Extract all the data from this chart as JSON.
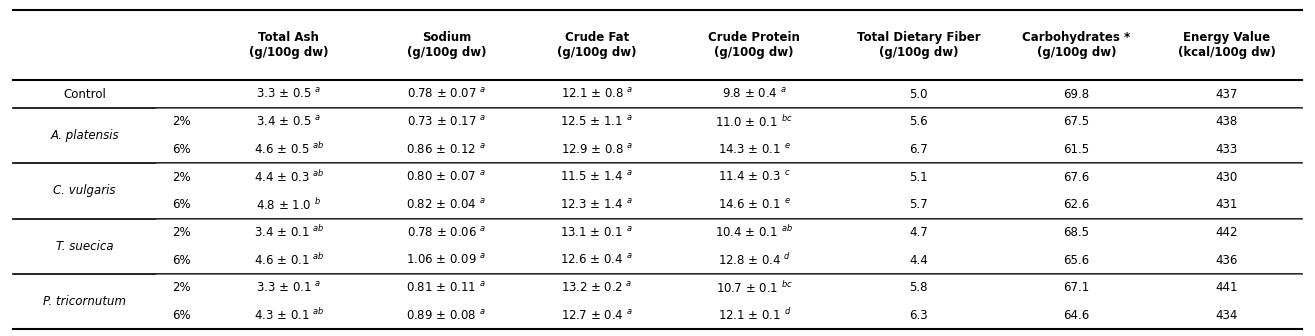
{
  "headers": [
    "",
    "",
    "Total Ash\n(g/100g dw)",
    "Sodium\n(g/100g dw)",
    "Crude Fat\n(g/100g dw)",
    "Crude Protein\n(g/100g dw)",
    "Total Dietary Fiber\n(g/100g dw)",
    "Carbohydrates *\n(g/100g dw)",
    "Energy Value\n(kcal/100g dw)"
  ],
  "rows": [
    [
      "Control",
      "",
      "3.3 ± 0.5 $^{a}$",
      "0.78 ± 0.07 $^{a}$",
      "12.1 ± 0.8 $^{a}$",
      "9.8 ± 0.4 $^{a}$",
      "5.0",
      "69.8",
      "437"
    ],
    [
      "A. platensis",
      "2%",
      "3.4 ± 0.5 $^{a}$",
      "0.73 ± 0.17 $^{a}$",
      "12.5 ± 1.1 $^{a}$",
      "11.0 ± 0.1 $^{bc}$",
      "5.6",
      "67.5",
      "438"
    ],
    [
      "",
      "6%",
      "4.6 ± 0.5 $^{ab}$",
      "0.86 ± 0.12 $^{a}$",
      "12.9 ± 0.8 $^{a}$",
      "14.3 ± 0.1 $^{e}$",
      "6.7",
      "61.5",
      "433"
    ],
    [
      "C. vulgaris",
      "2%",
      "4.4 ± 0.3 $^{ab}$",
      "0.80 ± 0.07 $^{a}$",
      "11.5 ± 1.4 $^{a}$",
      "11.4 ± 0.3 $^{c}$",
      "5.1",
      "67.6",
      "430"
    ],
    [
      "",
      "6%",
      "4.8 ± 1.0 $^{b}$",
      "0.82 ± 0.04 $^{a}$",
      "12.3 ± 1.4 $^{a}$",
      "14.6 ± 0.1 $^{e}$",
      "5.7",
      "62.6",
      "431"
    ],
    [
      "T. suecica",
      "2%",
      "3.4 ± 0.1 $^{ab}$",
      "0.78 ± 0.06 $^{a}$",
      "13.1 ± 0.1 $^{a}$",
      "10.4 ± 0.1 $^{ab}$",
      "4.7",
      "68.5",
      "442"
    ],
    [
      "",
      "6%",
      "4.6 ± 0.1 $^{ab}$",
      "1.06 ± 0.09 $^{a}$",
      "12.6 ± 0.4 $^{a}$",
      "12.8 ± 0.4 $^{d}$",
      "4.4",
      "65.6",
      "436"
    ],
    [
      "P. tricornutum",
      "2%",
      "3.3 ± 0.1 $^{a}$",
      "0.81 ± 0.11 $^{a}$",
      "13.2 ± 0.2 $^{a}$",
      "10.7 ± 0.1 $^{bc}$",
      "5.8",
      "67.1",
      "441"
    ],
    [
      "",
      "6%",
      "4.3 ± 0.1 $^{ab}$",
      "0.89 ± 0.08 $^{a}$",
      "12.7 ± 0.4 $^{a}$",
      "12.1 ± 0.1 $^{d}$",
      "6.3",
      "64.6",
      "434"
    ]
  ],
  "italic_species": [
    "A. platensis",
    "C. vulgaris",
    "T. suecica",
    "P. tricornutum"
  ],
  "bg_color": "#ffffff",
  "header_line_color": "#000000",
  "row_separator_color": "#888888",
  "thick_separator_color": "#000000",
  "font_size": 8.5,
  "header_font_size": 8.5
}
